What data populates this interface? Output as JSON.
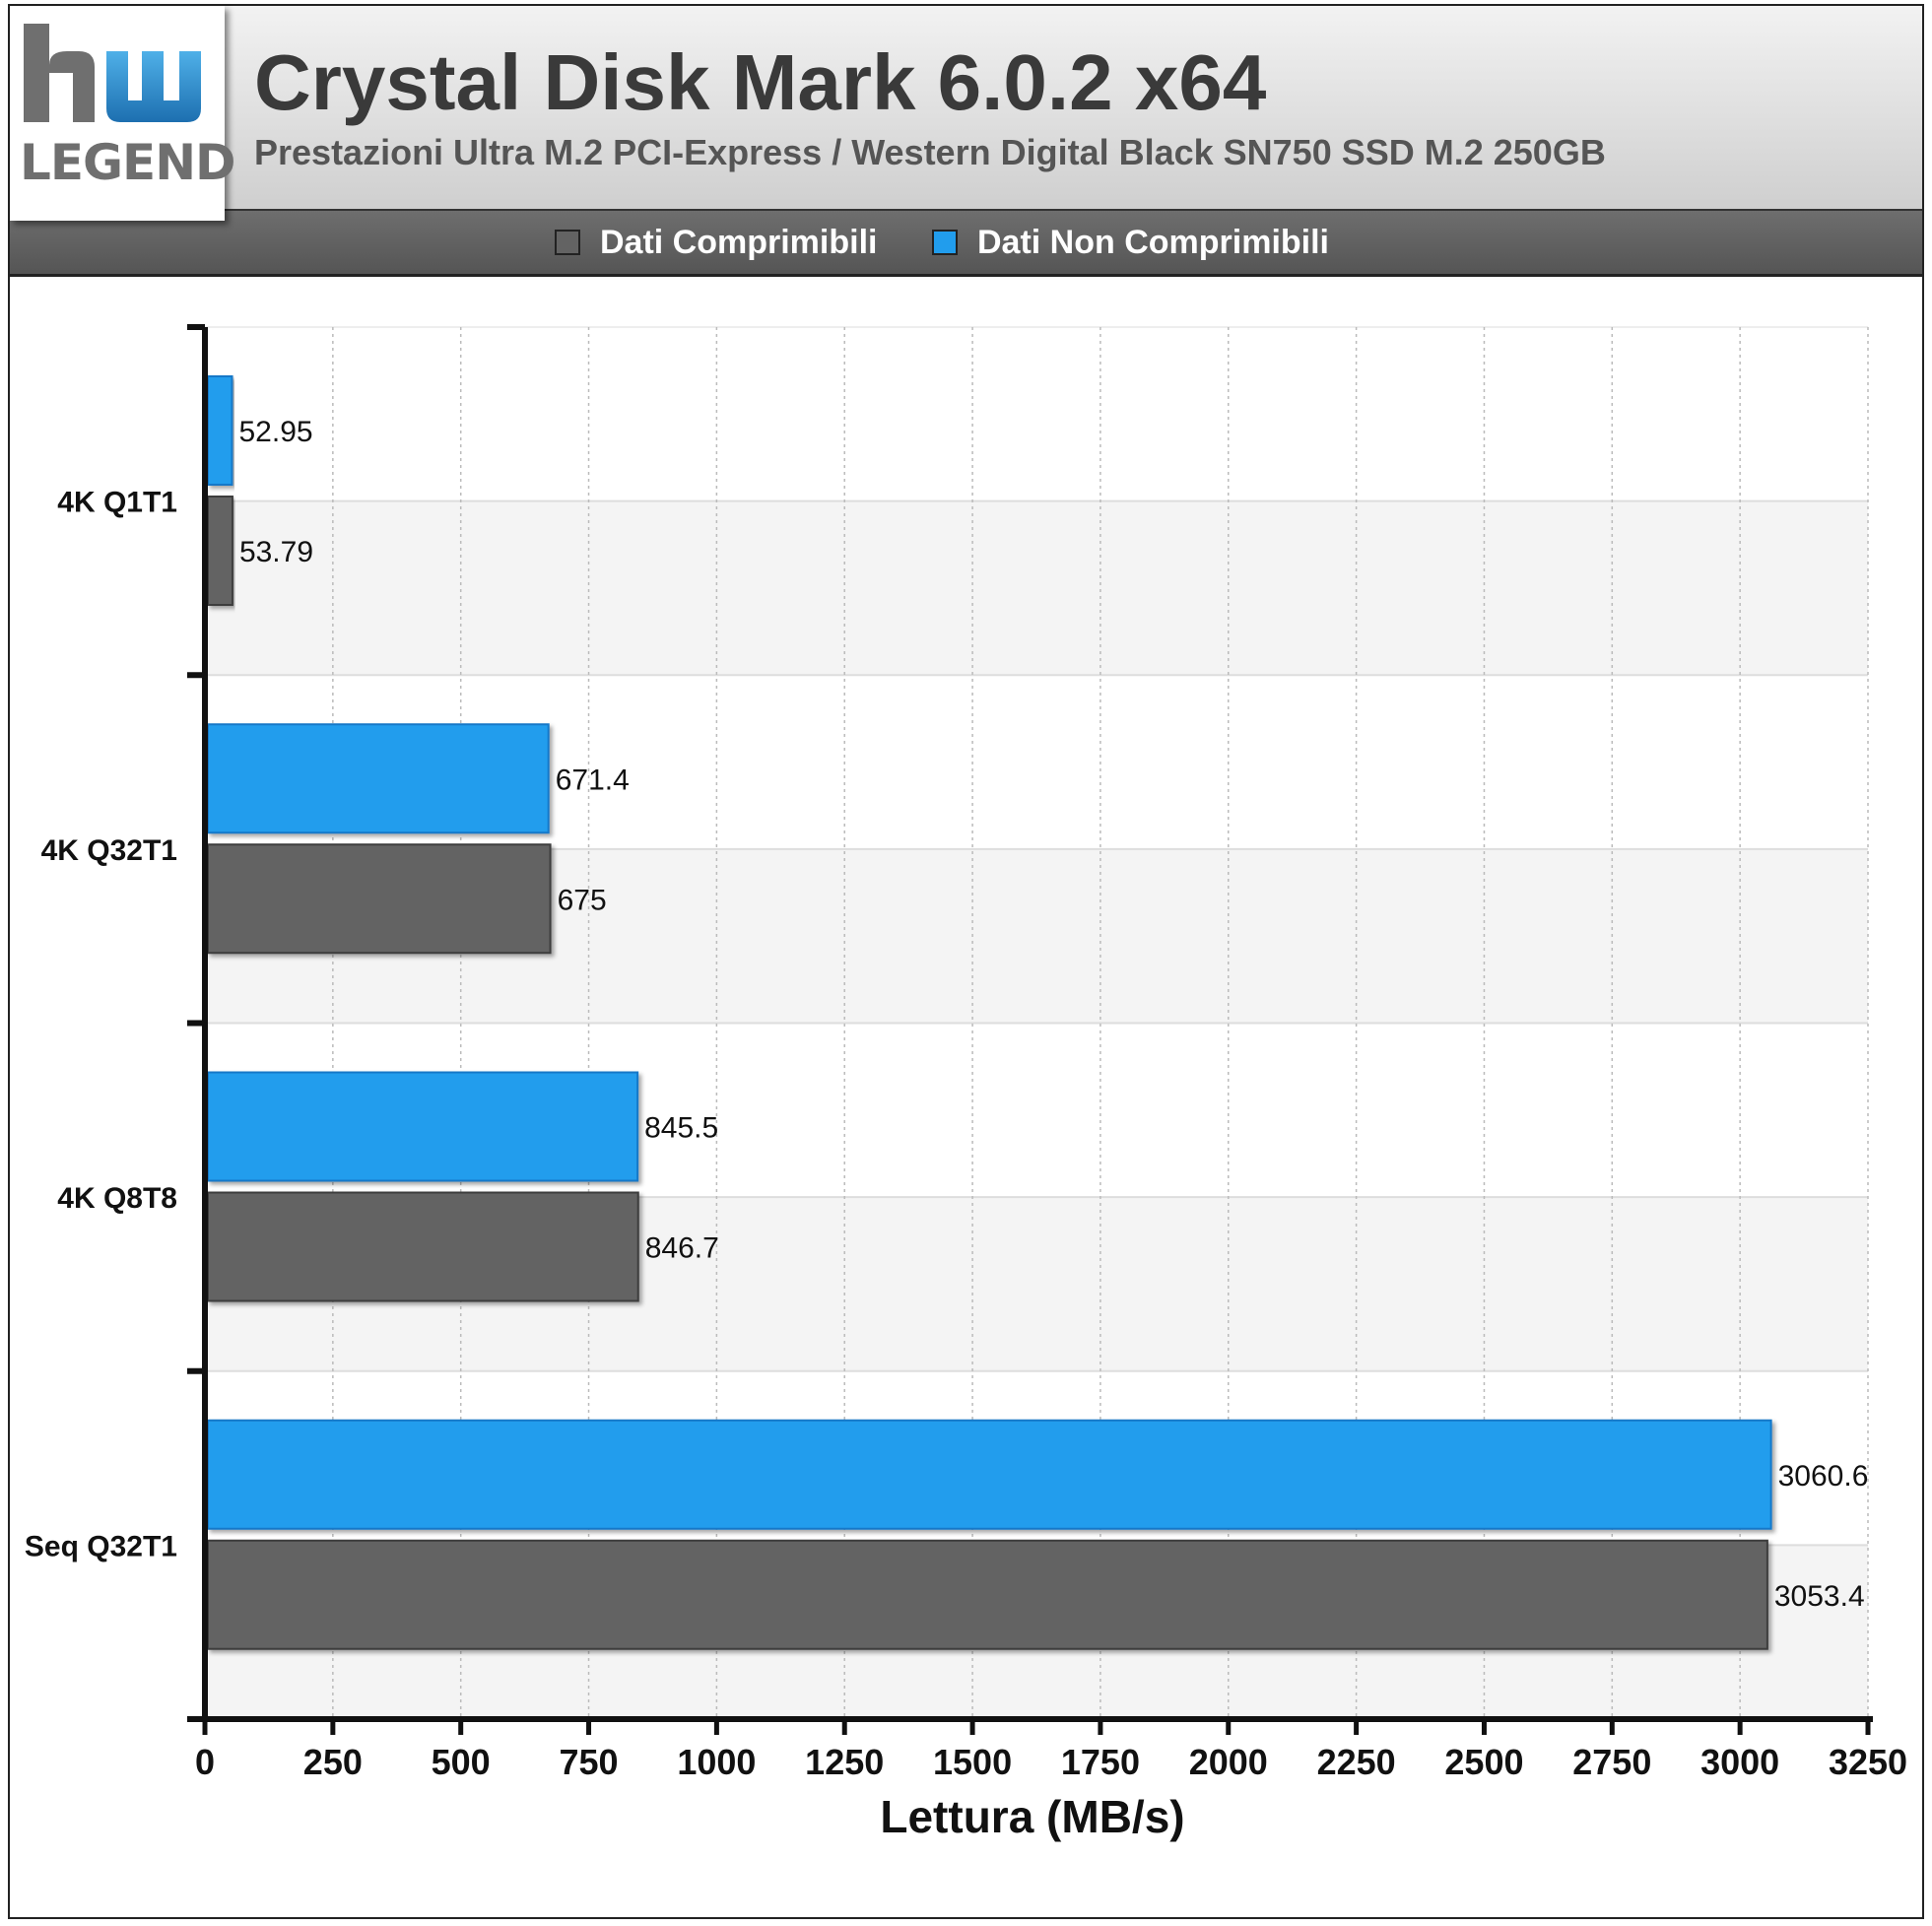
{
  "header": {
    "title": "Crystal Disk Mark 6.0.2 x64",
    "subtitle": "Prestazioni Ultra M.2 PCI-Express / Western Digital Black SN750 SSD M.2 250GB",
    "logo_text": "LEGEND"
  },
  "colors": {
    "compressible": "#636363",
    "non_compressible": "#219ded",
    "grid": "#bbbbbb",
    "band": "#f4f4f4"
  },
  "chart_data": {
    "type": "bar",
    "orientation": "horizontal",
    "categories": [
      "4K Q1T1",
      "4K Q32T1",
      "4K Q8T8",
      "Seq Q32T1"
    ],
    "series": [
      {
        "name": "Dati Comprimibili",
        "values": [
          53.79,
          675,
          846.7,
          3053.4
        ],
        "color": "#636363"
      },
      {
        "name": "Dati Non Comprimibili",
        "values": [
          52.95,
          671.4,
          845.5,
          3060.6
        ],
        "color": "#219ded"
      }
    ],
    "value_labels": {
      "Dati Comprimibili": [
        "53.79",
        "675",
        "846.7",
        "3053.4"
      ],
      "Dati Non Comprimibili": [
        "52.95",
        "671.4",
        "845.5",
        "3060.6"
      ]
    },
    "xlabel": "Lettura (MB/s)",
    "ylabel": "",
    "xlim": [
      0,
      3250
    ],
    "xticks": [
      0,
      250,
      500,
      750,
      1000,
      1250,
      1500,
      1750,
      2000,
      2250,
      2500,
      2750,
      3000,
      3250
    ],
    "grid": true,
    "legend_position": "top"
  }
}
